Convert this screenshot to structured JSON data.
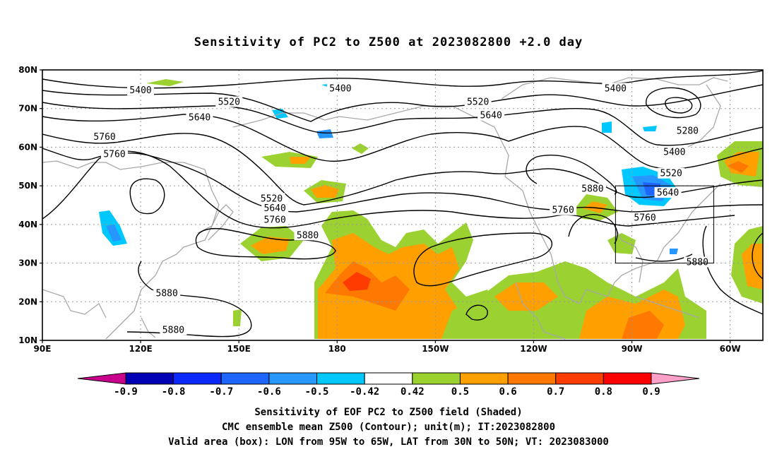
{
  "title": "Sensitivity of PC2 to Z500 at 2023082800 +2.0 day",
  "map": {
    "lat_labels": [
      "80N",
      "70N",
      "60N",
      "50N",
      "40N",
      "30N",
      "20N",
      "10N"
    ],
    "lon_labels": [
      "90E",
      "120E",
      "150E",
      "180",
      "150W",
      "120W",
      "90W",
      "60W"
    ],
    "lon_range": [
      90,
      310
    ],
    "lat_range": [
      10,
      80
    ],
    "valid_box": {
      "lon": [
        265,
        295
      ],
      "lat": [
        30,
        50
      ]
    },
    "contour_labels": [
      {
        "text": "5400",
        "lon": 120,
        "lat": 74.5
      },
      {
        "text": "5400",
        "lon": 181,
        "lat": 75
      },
      {
        "text": "5400",
        "lon": 265,
        "lat": 75
      },
      {
        "text": "5520",
        "lon": 147,
        "lat": 71.5
      },
      {
        "text": "5520",
        "lon": 223,
        "lat": 71.5
      },
      {
        "text": "5640",
        "lon": 138,
        "lat": 67.5
      },
      {
        "text": "5640",
        "lon": 227,
        "lat": 68
      },
      {
        "text": "5760",
        "lon": 109,
        "lat": 62.5
      },
      {
        "text": "5760",
        "lon": 112,
        "lat": 58
      },
      {
        "text": "5280",
        "lon": 287,
        "lat": 64
      },
      {
        "text": "5400",
        "lon": 283,
        "lat": 58.5
      },
      {
        "text": "5520",
        "lon": 282,
        "lat": 53
      },
      {
        "text": "5640",
        "lon": 281,
        "lat": 48
      },
      {
        "text": "5880",
        "lon": 258,
        "lat": 49
      },
      {
        "text": "5760",
        "lon": 249,
        "lat": 43.5
      },
      {
        "text": "5760",
        "lon": 274,
        "lat": 41.5
      },
      {
        "text": "5520",
        "lon": 160,
        "lat": 46.5
      },
      {
        "text": "5640",
        "lon": 161,
        "lat": 44
      },
      {
        "text": "5760",
        "lon": 161,
        "lat": 41
      },
      {
        "text": "5880",
        "lon": 171,
        "lat": 37
      },
      {
        "text": "5880",
        "lon": 290,
        "lat": 30
      },
      {
        "text": "5880",
        "lon": 128,
        "lat": 22
      },
      {
        "text": "5880",
        "lon": 130,
        "lat": 12.5
      }
    ]
  },
  "colorbar": {
    "levels": [
      "-0.9",
      "-0.8",
      "-0.7",
      "-0.6",
      "-0.5",
      "-0.42",
      "0.42",
      "0.5",
      "0.6",
      "0.7",
      "0.8",
      "0.9"
    ],
    "colors": [
      "#0000b4",
      "#0a28ff",
      "#1e64ff",
      "#2896ff",
      "#00c8ff",
      "#ffffff",
      "#9bd232",
      "#ffa000",
      "#ff7800",
      "#ff3c00",
      "#ff0000"
    ],
    "low_color": "#c8008c",
    "high_color": "#ffa0c8"
  },
  "caption": {
    "line1": "Sensitivity of EOF PC2 to Z500 field (Shaded)",
    "line2": "CMC ensemble mean Z500 (Contour); unit(m); IT:2023082800",
    "line3": "Valid area (box): LON from 95W to 65W, LAT from 30N to 50N; VT: 2023083000"
  }
}
